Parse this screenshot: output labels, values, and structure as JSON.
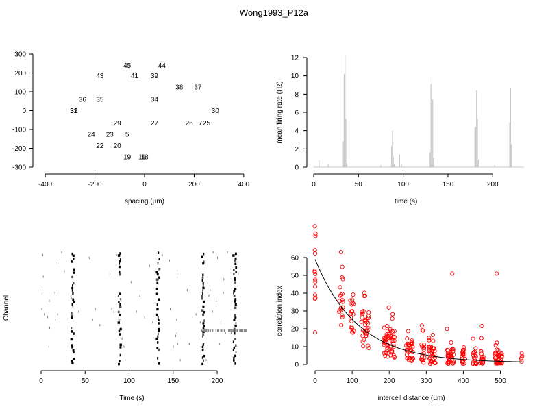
{
  "title": "Wong1993_P12a",
  "chart_data": [
    {
      "id": "layout",
      "type": "scatter",
      "xlabel": "spacing (µm)",
      "ylabel": "",
      "xlim": [
        -450,
        450
      ],
      "ylim": [
        -300,
        300
      ],
      "xticks": [
        -400,
        -200,
        0,
        200,
        400
      ],
      "yticks": [
        -300,
        -200,
        -100,
        0,
        100,
        200,
        300
      ],
      "points": [
        {
          "label": "45",
          "x": -70,
          "y": 240
        },
        {
          "label": "44",
          "x": 70,
          "y": 240
        },
        {
          "label": "43",
          "x": -180,
          "y": 185
        },
        {
          "label": "41",
          "x": -40,
          "y": 185
        },
        {
          "label": "39",
          "x": 40,
          "y": 185
        },
        {
          "label": "38",
          "x": 140,
          "y": 125
        },
        {
          "label": "37",
          "x": 215,
          "y": 125
        },
        {
          "label": "36",
          "x": -250,
          "y": 60
        },
        {
          "label": "35",
          "x": -180,
          "y": 60
        },
        {
          "label": "34",
          "x": 40,
          "y": 60
        },
        {
          "label": "32",
          "x": -285,
          "y": 0
        },
        {
          "label": "31",
          "x": -285,
          "y": 0
        },
        {
          "label": "30",
          "x": 285,
          "y": 0
        },
        {
          "label": "29",
          "x": -110,
          "y": -65
        },
        {
          "label": "27",
          "x": 40,
          "y": -65
        },
        {
          "label": "26",
          "x": 180,
          "y": -65
        },
        {
          "label": "7",
          "x": 225,
          "y": -65
        },
        {
          "label": "25",
          "x": 250,
          "y": -65
        },
        {
          "label": "24",
          "x": -215,
          "y": -125
        },
        {
          "label": "23",
          "x": -140,
          "y": -125
        },
        {
          "label": "5",
          "x": -70,
          "y": -125
        },
        {
          "label": "22",
          "x": -180,
          "y": -185
        },
        {
          "label": "20",
          "x": -110,
          "y": -185
        },
        {
          "label": "19",
          "x": -70,
          "y": -245
        },
        {
          "label": "18",
          "x": 0,
          "y": -245
        },
        {
          "label": "11",
          "x": -10,
          "y": -245
        }
      ]
    },
    {
      "id": "rate",
      "type": "bar",
      "xlabel": "time (s)",
      "ylabel": "mean firing rate (Hz)",
      "xlim": [
        0,
        235
      ],
      "ylim": [
        0,
        12
      ],
      "xticks": [
        0,
        50,
        100,
        150,
        200
      ],
      "yticks": [
        0,
        2,
        4,
        6,
        8,
        10,
        12
      ],
      "x": [
        6,
        16,
        33,
        34,
        35,
        36,
        37,
        75,
        87,
        88,
        89,
        90,
        96,
        98,
        130,
        131,
        132,
        133,
        134,
        180,
        181,
        182,
        183,
        184,
        202,
        219,
        220,
        221
      ],
      "values": [
        0.8,
        0.3,
        2.8,
        10.2,
        12.3,
        5.3,
        0.4,
        0.2,
        2.3,
        4.0,
        1.1,
        0.3,
        1.4,
        0.3,
        1.6,
        9.1,
        9.9,
        7.4,
        1.0,
        4.3,
        4.4,
        8.4,
        5.3,
        0.8,
        0.2,
        4.9,
        8.7,
        2.5
      ]
    },
    {
      "id": "raster",
      "type": "scatter",
      "xlabel": "Time (s)",
      "ylabel": "Channel",
      "xlim": [
        0,
        235
      ],
      "xticks": [
        0,
        50,
        100,
        150,
        200
      ],
      "bursts": [
        {
          "t": 36,
          "intensity": 1.0
        },
        {
          "t": 89,
          "intensity": 0.85
        },
        {
          "t": 133,
          "intensity": 1.0
        },
        {
          "t": 184,
          "intensity": 1.0
        },
        {
          "t": 220,
          "intensity": 0.95
        }
      ],
      "channels": 42
    },
    {
      "id": "corr",
      "type": "scatter",
      "xlabel": "intercell distance (µm)",
      "ylabel": "correlation index",
      "xlim": [
        0,
        560
      ],
      "ylim": [
        0,
        60
      ],
      "xticks": [
        0,
        100,
        200,
        300,
        400,
        500
      ],
      "yticks": [
        0,
        10,
        20,
        30,
        40,
        50,
        60
      ],
      "distances": [
        0,
        70,
        100,
        130,
        140,
        190,
        200,
        210,
        250,
        260,
        290,
        310,
        320,
        360,
        370,
        400,
        430,
        450,
        490,
        500,
        560
      ],
      "fit": {
        "y0": 58,
        "decay": 115,
        "offset": 1
      },
      "highlights": [
        {
          "x": 70,
          "y": 63
        },
        {
          "x": 370,
          "y": 51
        },
        {
          "x": 490,
          "y": 51
        },
        {
          "x": 0,
          "y": 18
        }
      ]
    }
  ],
  "colors": {
    "rate_bars": "#c8c8c8",
    "corr_points": "#ff0000",
    "fit_line": "#000000"
  }
}
